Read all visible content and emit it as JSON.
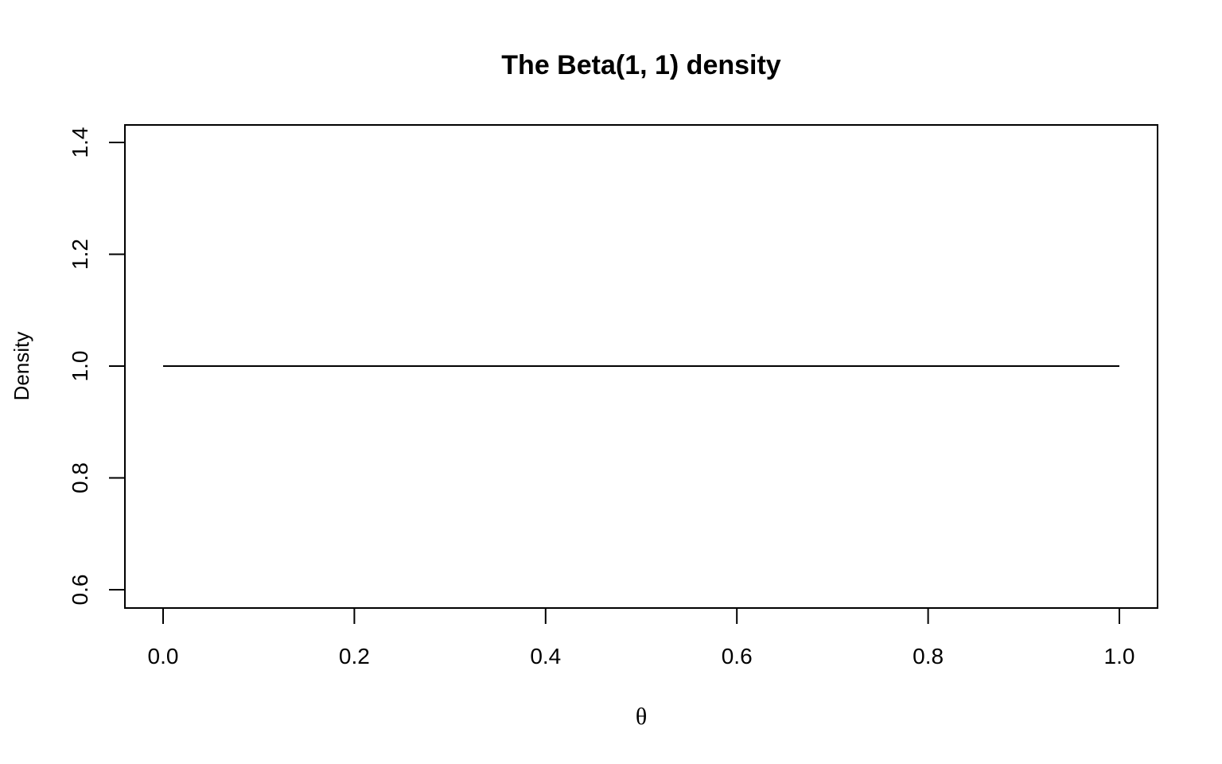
{
  "chart_data": {
    "type": "line",
    "title": "The Beta(1, 1) density",
    "xlabel": "θ",
    "ylabel": "Density",
    "xlim": [
      -0.04,
      1.04
    ],
    "ylim": [
      0.6,
      1.4
    ],
    "x_ticks": [
      0.0,
      0.2,
      0.4,
      0.6,
      0.8,
      1.0
    ],
    "x_tick_labels": [
      "0.0",
      "0.2",
      "0.4",
      "0.6",
      "0.8",
      "1.0"
    ],
    "y_ticks": [
      0.6,
      0.8,
      1.0,
      1.2,
      1.4
    ],
    "y_tick_labels": [
      "0.6",
      "0.8",
      "1.0",
      "1.2",
      "1.4"
    ],
    "grid": false,
    "series": [
      {
        "x": [
          0.0,
          0.25,
          0.5,
          0.75,
          1.0
        ],
        "y": [
          1.0,
          1.0,
          1.0,
          1.0,
          1.0
        ],
        "color": "#000000"
      }
    ]
  }
}
